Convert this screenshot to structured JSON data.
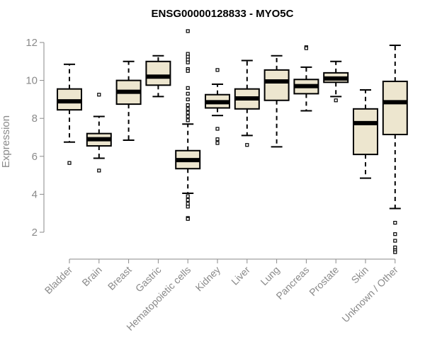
{
  "chart_data": {
    "type": "boxplot",
    "title": "ENSG00000128833 - MYO5C",
    "xlabel": "",
    "ylabel": "Expression",
    "ylim": [
      1,
      12.7
    ],
    "yticks": [
      2,
      4,
      6,
      8,
      10,
      12
    ],
    "box_fill": "#ede6cf",
    "categories": [
      "Bladder",
      "Brain",
      "Breast",
      "Gastric",
      "Hematopoietic cells",
      "Kidney",
      "Liver",
      "Lung",
      "Pancreas",
      "Prostate",
      "Skin",
      "Unknown / Other"
    ],
    "boxes": [
      {
        "name": "Bladder",
        "whisker_low": 6.75,
        "q1": 8.45,
        "median": 8.9,
        "q3": 9.55,
        "whisker_high": 10.85,
        "outliers": [
          5.65
        ]
      },
      {
        "name": "Brain",
        "whisker_low": 5.9,
        "q1": 6.55,
        "median": 6.9,
        "q3": 7.2,
        "whisker_high": 8.1,
        "outliers": [
          9.25,
          5.25
        ]
      },
      {
        "name": "Breast",
        "whisker_low": 6.85,
        "q1": 8.75,
        "median": 9.4,
        "q3": 10.0,
        "whisker_high": 11.0,
        "outliers": []
      },
      {
        "name": "Gastric",
        "whisker_low": 9.15,
        "q1": 9.75,
        "median": 10.2,
        "q3": 11.0,
        "whisker_high": 11.3,
        "outliers": []
      },
      {
        "name": "Hematopoietic cells",
        "whisker_low": 4.05,
        "q1": 5.35,
        "median": 5.8,
        "q3": 6.3,
        "whisker_high": 7.7,
        "outliers": [
          12.6,
          11.4,
          11.25,
          11.1,
          10.95,
          10.6,
          10.5,
          9.6,
          9.3,
          9.0,
          8.7,
          8.5,
          8.3,
          8.1,
          7.9,
          3.9,
          3.7,
          3.5,
          3.35,
          2.75,
          2.7
        ]
      },
      {
        "name": "Kidney",
        "whisker_low": 8.15,
        "q1": 8.55,
        "median": 8.85,
        "q3": 9.25,
        "whisker_high": 9.8,
        "outliers": [
          10.55,
          7.45,
          6.9,
          6.7
        ]
      },
      {
        "name": "Liver",
        "whisker_low": 7.1,
        "q1": 8.5,
        "median": 9.05,
        "q3": 9.55,
        "whisker_high": 11.05,
        "outliers": [
          6.6
        ]
      },
      {
        "name": "Lung",
        "whisker_low": 6.5,
        "q1": 8.95,
        "median": 9.95,
        "q3": 10.55,
        "whisker_high": 11.3,
        "outliers": []
      },
      {
        "name": "Pancreas",
        "whisker_low": 8.4,
        "q1": 9.3,
        "median": 9.7,
        "q3": 10.05,
        "whisker_high": 10.7,
        "outliers": [
          11.75,
          11.7
        ]
      },
      {
        "name": "Prostate",
        "whisker_low": 9.15,
        "q1": 9.9,
        "median": 10.1,
        "q3": 10.4,
        "whisker_high": 11.0,
        "outliers": [
          8.95
        ]
      },
      {
        "name": "Skin",
        "whisker_low": 4.85,
        "q1": 6.1,
        "median": 7.75,
        "q3": 8.5,
        "whisker_high": 9.5,
        "outliers": []
      },
      {
        "name": "Unknown / Other",
        "whisker_low": 3.25,
        "q1": 7.15,
        "median": 8.85,
        "q3": 9.95,
        "whisker_high": 11.85,
        "outliers": [
          2.5,
          1.9,
          1.55,
          1.2,
          1.05,
          0.95
        ]
      }
    ]
  }
}
